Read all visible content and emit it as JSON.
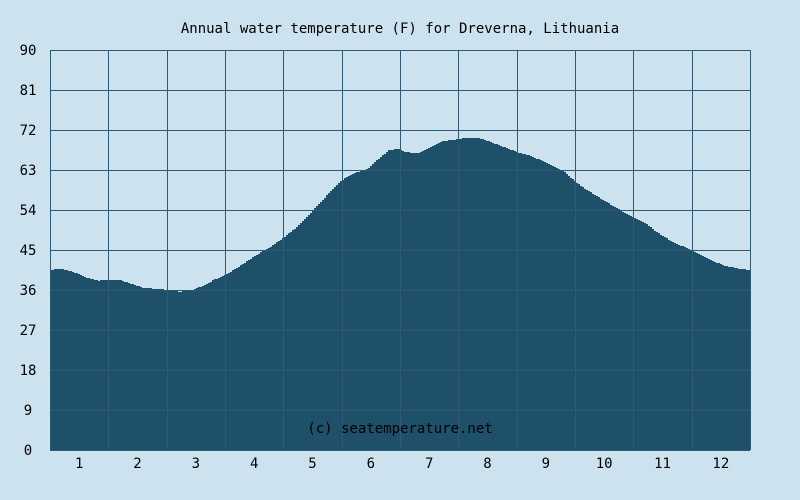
{
  "chart_data": {
    "type": "area",
    "title": "Annual water temperature (F) for Dreverna, Lithuania",
    "watermark": "(c) seatemperature.net",
    "xlabel": "",
    "ylabel": "",
    "xlim": [
      0.5,
      12.5
    ],
    "ylim": [
      0,
      90
    ],
    "x_ticks": [
      "1",
      "2",
      "3",
      "4",
      "5",
      "6",
      "7",
      "8",
      "9",
      "10",
      "11",
      "12"
    ],
    "y_ticks": [
      "0",
      "9",
      "18",
      "27",
      "36",
      "45",
      "54",
      "63",
      "72",
      "81",
      "90"
    ],
    "grid": true,
    "colors": {
      "background": "#cce3ef",
      "fill": "#1f5069",
      "grid": "#2f5a74",
      "text": "#000000"
    },
    "x": [
      0.5,
      0.6,
      0.7,
      0.9,
      1.1,
      1.3,
      1.5,
      1.7,
      1.9,
      2.1,
      2.3,
      2.5,
      2.7,
      2.9,
      3.1,
      3.3,
      3.5,
      3.7,
      3.9,
      4.1,
      4.3,
      4.5,
      4.7,
      4.9,
      5.1,
      5.3,
      5.5,
      5.7,
      5.9,
      6.0,
      6.1,
      6.3,
      6.45,
      6.6,
      6.8,
      7.0,
      7.2,
      7.4,
      7.6,
      7.75,
      7.9,
      8.1,
      8.3,
      8.5,
      8.7,
      8.9,
      9.1,
      9.3,
      9.5,
      9.7,
      9.9,
      10.1,
      10.3,
      10.5,
      10.7,
      10.9,
      11.1,
      11.3,
      11.5,
      11.7,
      11.9,
      12.1,
      12.3,
      12.5
    ],
    "values": [
      40.5,
      40.8,
      40.7,
      40.0,
      38.8,
      38.1,
      38.3,
      38.2,
      37.3,
      36.4,
      36.3,
      36.0,
      35.6,
      35.9,
      36.9,
      38.3,
      39.5,
      41.0,
      42.8,
      44.5,
      46.0,
      47.9,
      50.0,
      52.5,
      55.5,
      58.2,
      60.8,
      62.3,
      63.0,
      64.0,
      65.3,
      67.5,
      67.7,
      67.0,
      66.8,
      68.0,
      69.4,
      69.8,
      70.2,
      70.3,
      70.0,
      69.0,
      68.0,
      67.0,
      66.3,
      65.2,
      64.0,
      62.6,
      60.3,
      58.4,
      56.8,
      55.2,
      53.7,
      52.3,
      51.0,
      48.9,
      47.3,
      46.0,
      44.9,
      43.5,
      42.2,
      41.3,
      40.8,
      40.5
    ]
  }
}
